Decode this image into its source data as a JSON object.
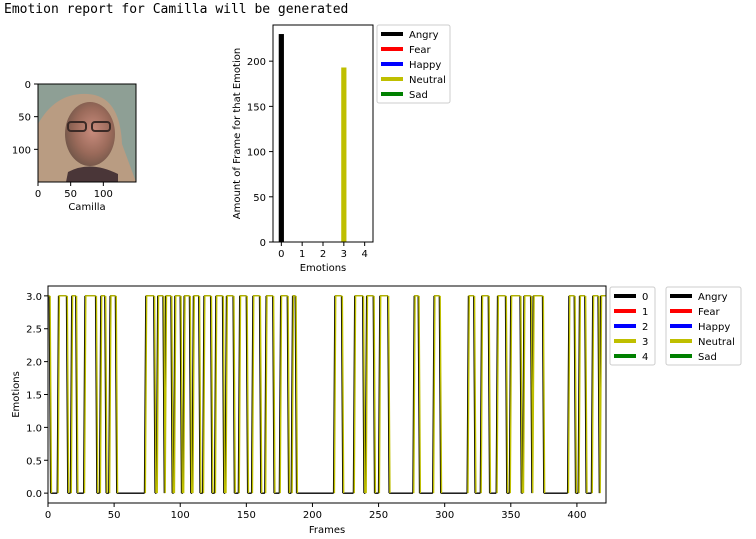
{
  "header": {
    "text": "Emotion report for Camilla will be generated"
  },
  "colors": {
    "angry": "#000000",
    "fear": "#ff0000",
    "happy": "#0000ff",
    "neutral": "#bfbf00",
    "sad": "#008000"
  },
  "photo": {
    "xlabel": "Camilla",
    "x_ticks": [
      "0",
      "50",
      "100"
    ],
    "y_ticks": [
      "0",
      "50",
      "100"
    ],
    "width": 150,
    "height": 150
  },
  "chart_data": [
    {
      "type": "bar",
      "title": "",
      "xlabel": "Emotions",
      "ylabel": "Amount of Frame for that Emotion",
      "x_ticks": [
        0,
        1,
        2,
        3,
        4
      ],
      "xlim": [
        -0.4,
        4.4
      ],
      "ylim": [
        0,
        240
      ],
      "y_ticks": [
        0,
        50,
        100,
        150,
        200
      ],
      "bars": [
        {
          "x": 0,
          "value": 230,
          "color": "#000000"
        },
        {
          "x": 3,
          "value": 193,
          "color": "#bfbf00"
        }
      ],
      "legend": [
        {
          "label": "Angry",
          "color": "#000000"
        },
        {
          "label": "Fear",
          "color": "#ff0000"
        },
        {
          "label": "Happy",
          "color": "#0000ff"
        },
        {
          "label": "Neutral",
          "color": "#bfbf00"
        },
        {
          "label": "Sad",
          "color": "#008000"
        }
      ],
      "legend_position": "outside-right"
    },
    {
      "type": "line",
      "title": "",
      "xlabel": "Frames",
      "ylabel": "Emotions",
      "xlim": [
        0,
        422
      ],
      "ylim": [
        -0.15,
        3.15
      ],
      "x_ticks": [
        0,
        50,
        100,
        150,
        200,
        250,
        300,
        350,
        400
      ],
      "y_ticks": [
        "0.0",
        "0.5",
        "1.0",
        "1.5",
        "2.0",
        "2.5",
        "3.0"
      ],
      "frames": 422,
      "neutral_segments": [
        [
          0,
          1
        ],
        [
          8,
          14
        ],
        [
          18,
          21
        ],
        [
          28,
          36
        ],
        [
          40,
          43
        ],
        [
          47,
          51
        ],
        [
          74,
          80
        ],
        [
          83,
          87
        ],
        [
          89,
          93
        ],
        [
          96,
          100
        ],
        [
          103,
          107
        ],
        [
          110,
          114
        ],
        [
          118,
          123
        ],
        [
          127,
          132
        ],
        [
          135,
          140
        ],
        [
          145,
          150
        ],
        [
          155,
          160
        ],
        [
          165,
          170
        ],
        [
          176,
          181
        ],
        [
          185,
          187
        ],
        [
          217,
          222
        ],
        [
          232,
          238
        ],
        [
          241,
          246
        ],
        [
          251,
          257
        ],
        [
          277,
          280
        ],
        [
          292,
          296
        ],
        [
          318,
          322
        ],
        [
          328,
          333
        ],
        [
          340,
          346
        ],
        [
          350,
          357
        ],
        [
          360,
          365
        ],
        [
          367,
          374
        ],
        [
          394,
          398
        ],
        [
          402,
          406
        ],
        [
          412,
          416
        ],
        [
          418,
          422
        ]
      ],
      "series_values": "0 for all frames except inside neutral_segments, where value is 3",
      "legend_numeric": [
        {
          "label": "0",
          "color": "#000000"
        },
        {
          "label": "1",
          "color": "#ff0000"
        },
        {
          "label": "2",
          "color": "#0000ff"
        },
        {
          "label": "3",
          "color": "#bfbf00"
        },
        {
          "label": "4",
          "color": "#008000"
        }
      ],
      "legend_named": [
        {
          "label": "Angry",
          "color": "#000000"
        },
        {
          "label": "Fear",
          "color": "#ff0000"
        },
        {
          "label": "Happy",
          "color": "#0000ff"
        },
        {
          "label": "Neutral",
          "color": "#bfbf00"
        },
        {
          "label": "Sad",
          "color": "#008000"
        }
      ],
      "legend_position": "outside-right"
    }
  ]
}
